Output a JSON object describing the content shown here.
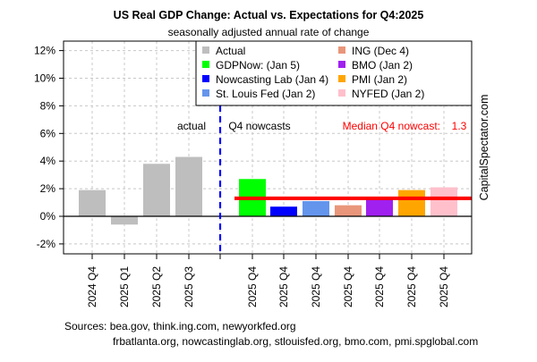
{
  "chart_data": {
    "type": "bar",
    "title": "US Real GDP Change: Actual vs. Expectations for Q4:2025",
    "subtitle": "seasonally adjusted annual rate of change",
    "ylim": [
      -3,
      12.5
    ],
    "yticks": [
      -2,
      0,
      2,
      4,
      6,
      8,
      10,
      12
    ],
    "ytick_suffix": "%",
    "grid": true,
    "categories": [
      "2024 Q4",
      "2025 Q1",
      "2025 Q2",
      "2025 Q3",
      "",
      "2025 Q4",
      "2025 Q4",
      "2025 Q4",
      "2025 Q4",
      "2025 Q4",
      "2025 Q4",
      "2025 Q4"
    ],
    "bars": [
      {
        "series": "Actual",
        "label": "2024 Q4",
        "value": 1.9,
        "color": "#bebebe"
      },
      {
        "series": "Actual",
        "label": "2025 Q1",
        "value": -0.6,
        "color": "#bebebe"
      },
      {
        "series": "Actual",
        "label": "2025 Q2",
        "value": 3.8,
        "color": "#bebebe"
      },
      {
        "series": "Actual",
        "label": "2025 Q3",
        "value": 4.3,
        "color": "#bebebe"
      },
      {
        "series": "GDPNow: (Jan 5)",
        "label": "2025 Q4",
        "value": 2.7,
        "color": "#00ff00"
      },
      {
        "series": "Nowcasting Lab (Jan 4)",
        "label": "2025 Q4",
        "value": 0.7,
        "color": "#0000ff"
      },
      {
        "series": "St. Louis Fed (Jan 2)",
        "label": "2025 Q4",
        "value": 1.1,
        "color": "#6495ed"
      },
      {
        "series": "ING (Dec 4)",
        "label": "2025 Q4",
        "value": 0.8,
        "color": "#e9967a"
      },
      {
        "series": "BMO (Jan 2)",
        "label": "2025 Q4",
        "value": 1.3,
        "color": "#a020f0"
      },
      {
        "series": "PMI (Jan 2)",
        "label": "2025 Q4",
        "value": 1.9,
        "color": "#ffa500"
      },
      {
        "series": "NYFED (Jan 2)",
        "label": "2025 Q4",
        "value": 2.1,
        "color": "#ffc0cb"
      }
    ],
    "legend": {
      "placement": "top-right",
      "entries": [
        {
          "label": "Actual",
          "color": "#bebebe"
        },
        {
          "label": "GDPNow: (Jan 5)",
          "color": "#00ff00"
        },
        {
          "label": "Nowcasting Lab (Jan 4)",
          "color": "#0000ff"
        },
        {
          "label": "St. Louis Fed (Jan 2)",
          "color": "#6495ed"
        },
        {
          "label": "ING (Dec 4)",
          "color": "#e9967a"
        },
        {
          "label": "BMO (Jan 2)",
          "color": "#a020f0"
        },
        {
          "label": "PMI (Jan 2)",
          "color": "#ffa500"
        },
        {
          "label": "NYFED (Jan 2)",
          "color": "#ffc0cb"
        }
      ]
    },
    "median": {
      "value": 1.3,
      "label": "Median Q4 nowcast:",
      "value_label": "1.3",
      "color": "#ff0000"
    },
    "annotations": {
      "actual": "actual",
      "nowcasts": "Q4 nowcasts"
    },
    "divider_color": "#0000ff",
    "watermark": "CapitalSpectator.com",
    "sources_line1": "Sources: bea.gov, think.ing.com, newyorkfed.org",
    "sources_line2": "frbatlanta.org, nowcastinglab.org, stlouisfed.org, bmo.com, pmi.spglobal.com"
  }
}
